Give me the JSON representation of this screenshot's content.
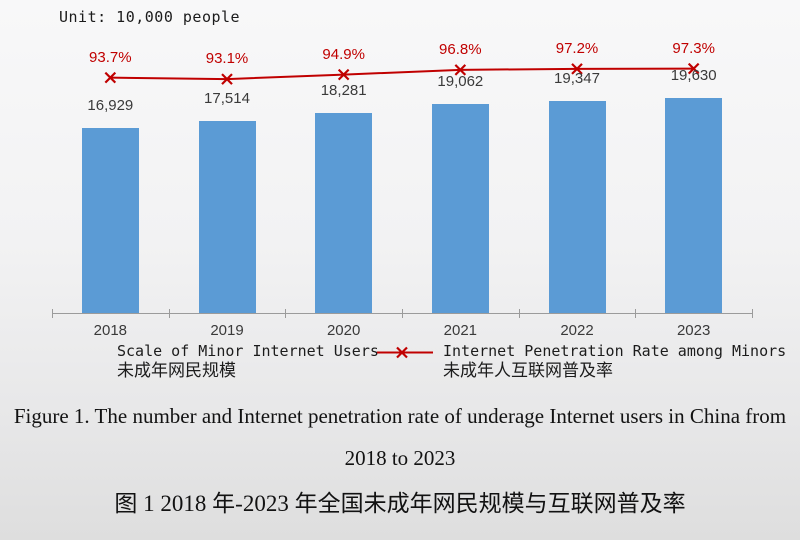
{
  "chart": {
    "unit_label": "Unit: 10,000 people"
  },
  "chart_data": {
    "type": "bar",
    "title": "",
    "unit": "10,000 people",
    "categories": [
      "2018",
      "2019",
      "2020",
      "2021",
      "2022",
      "2023"
    ],
    "series": [
      {
        "type": "bar",
        "name": "Scale of Minor Internet Users",
        "name_zh": "未成年网民规模",
        "values": [
          16929,
          17514,
          18281,
          19062,
          19347,
          19630
        ],
        "value_labels": [
          "16,929",
          "17,514",
          "18,281",
          "19,062",
          "19,347",
          "19,630"
        ],
        "color": "#5B9BD5"
      },
      {
        "type": "line",
        "name": "Internet Penetration Rate among Minors",
        "name_zh": "未成年人互联网普及率",
        "values": [
          93.7,
          93.1,
          94.9,
          96.8,
          97.2,
          97.3
        ],
        "value_labels": [
          "93.7%",
          "93.1%",
          "94.9%",
          "96.8%",
          "97.2%",
          "97.3%"
        ],
        "color": "#C00000",
        "marker": "x"
      }
    ],
    "legend_position": "bottom",
    "gridlines": false,
    "y_axis_visible": false
  },
  "legend": {
    "bar": {
      "label_en": "Scale of Minor Internet Users",
      "label_zh": "未成年网民规模"
    },
    "line": {
      "label_en": "Internet Penetration Rate among Minors",
      "label_zh": "未成年人互联网普及率"
    }
  },
  "captions": {
    "en_line1": "Figure 1. The number and Internet penetration rate of underage Internet users in China from",
    "en_line2": "2018 to 2023",
    "zh": "图 1 2018 年-2023 年全国未成年网民规模与互联网普及率"
  },
  "colors": {
    "bar": "#5B9BD5",
    "line": "#C00000",
    "value_label": "#3a3a3a",
    "axis": "#9b9b9b"
  }
}
